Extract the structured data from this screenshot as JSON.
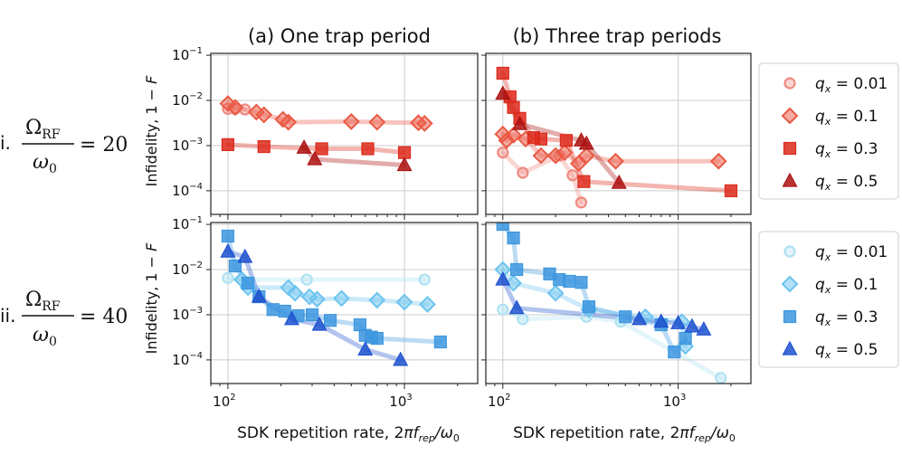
{
  "colors": {
    "red": [
      "#f08a80",
      "#ea5a45",
      "#dd2a1c",
      "#ad1212"
    ],
    "blue": [
      "#aee1f2",
      "#6cc4ef",
      "#3d97df",
      "#1f52cf"
    ],
    "grid": "#cccccc",
    "axis": "#222222"
  },
  "row_labels": [
    {
      "prefix": "i.",
      "num": "Ω",
      "num_sub": "RF",
      "den": "ω",
      "den_sub": "0",
      "eq": "= 20"
    },
    {
      "prefix": "ii.",
      "num": "Ω",
      "num_sub": "RF",
      "den": "ω",
      "den_sub": "0",
      "eq": "= 40"
    }
  ],
  "chart_data": {
    "type": "scatter",
    "col_titles": [
      "(a) One trap period",
      "(b) Three trap periods"
    ],
    "xlabel_text": "SDK repetition rate, 2",
    "xlabel_symbol": "πf",
    "xlabel_sub": "rep",
    "xlabel_tail": "/ω",
    "xlabel_tail_sub": "0",
    "ylabel_text": "Infidelity, 1 − ",
    "ylabel_italic": "F",
    "xlim": [
      80,
      2600
    ],
    "ylim": [
      3e-05,
      0.11
    ],
    "xscale": "log",
    "yscale": "log",
    "xticks": [
      {
        "value": 100,
        "base": "10",
        "exp": "2"
      },
      {
        "value": 1000,
        "base": "10",
        "exp": "3"
      }
    ],
    "yticks": [
      {
        "value": 0.1,
        "base": "10",
        "exp": "−1"
      },
      {
        "value": 0.01,
        "base": "10",
        "exp": "−2"
      },
      {
        "value": 0.001,
        "base": "10",
        "exp": "−3"
      },
      {
        "value": 0.0001,
        "base": "10",
        "exp": "−4"
      }
    ],
    "legends": [
      {
        "row": 0,
        "palette": "red",
        "entries": [
          {
            "marker": "circle",
            "label": "0.01"
          },
          {
            "marker": "diamond",
            "label": "0.1"
          },
          {
            "marker": "square",
            "label": "0.3"
          },
          {
            "marker": "triangle",
            "label": "0.5"
          }
        ]
      },
      {
        "row": 1,
        "palette": "blue",
        "entries": [
          {
            "marker": "circle",
            "label": "0.01"
          },
          {
            "marker": "diamond",
            "label": "0.1"
          },
          {
            "marker": "square",
            "label": "0.3"
          },
          {
            "marker": "triangle",
            "label": "0.5"
          }
        ]
      }
    ],
    "legend_var": "q",
    "legend_var_sub": "x",
    "panels": [
      {
        "row": 0,
        "col": 0,
        "palette": "red",
        "series": [
          {
            "qx": "0.01",
            "marker": "circle",
            "x": [
              100,
              110,
              125
            ],
            "y": [
              0.0065,
              0.0065,
              0.0063
            ]
          },
          {
            "qx": "0.1",
            "marker": "diamond",
            "x": [
              100,
              110,
              145,
              160,
              205,
              220,
              500,
              700,
              1200,
              1300
            ],
            "y": [
              0.0085,
              0.007,
              0.0055,
              0.0048,
              0.0038,
              0.0033,
              0.0034,
              0.0033,
              0.0032,
              0.0031
            ]
          },
          {
            "qx": "0.3",
            "marker": "square",
            "x": [
              100,
              160,
              340,
              620,
              1000
            ],
            "y": [
              0.00105,
              0.00095,
              0.00085,
              0.00085,
              0.0007
            ]
          },
          {
            "qx": "0.5",
            "marker": "triangle",
            "x": [
              270,
              310,
              1000
            ],
            "y": [
              0.0009,
              0.0005,
              0.00037
            ]
          }
        ]
      },
      {
        "row": 0,
        "col": 1,
        "palette": "red",
        "series": [
          {
            "qx": "0.01",
            "marker": "circle",
            "x": [
              100,
              130,
              210,
              250,
              280
            ],
            "y": [
              0.0007,
              0.00025,
              0.0006,
              0.00022,
              5.5e-05
            ]
          },
          {
            "qx": "0.1",
            "marker": "diamond",
            "x": [
              100,
              105,
              115,
              135,
              165,
              200,
              225,
              270,
              300,
              440,
              1700
            ],
            "y": [
              0.0018,
              0.0013,
              0.0017,
              0.0014,
              0.0006,
              0.0006,
              0.0007,
              0.0004,
              0.0006,
              0.00045,
              0.00045
            ]
          },
          {
            "qx": "0.3",
            "marker": "square",
            "x": [
              100,
              110,
              115,
              125,
              150,
              165,
              230,
              290,
              2000
            ],
            "y": [
              0.04,
              0.012,
              0.007,
              0.004,
              0.0015,
              0.0014,
              0.0013,
              0.00016,
              0.0001
            ]
          },
          {
            "qx": "0.5",
            "marker": "triangle",
            "x": [
              100,
              125,
              280,
              300,
              460
            ],
            "y": [
              0.014,
              0.003,
              0.0013,
              0.0011,
              0.00015
            ]
          }
        ]
      },
      {
        "row": 1,
        "col": 0,
        "palette": "blue",
        "series": [
          {
            "qx": "0.01",
            "marker": "circle",
            "x": [
              100,
              120,
              280,
              1300
            ],
            "y": [
              0.0065,
              0.006,
              0.006,
              0.006
            ]
          },
          {
            "qx": "0.1",
            "marker": "diamond",
            "x": [
              120,
              130,
              220,
              240,
              290,
              320,
              440,
              700,
              1000,
              1350
            ],
            "y": [
              0.006,
              0.004,
              0.004,
              0.003,
              0.0025,
              0.0022,
              0.0023,
              0.0021,
              0.0019,
              0.0017
            ]
          },
          {
            "qx": "0.3",
            "marker": "square",
            "x": [
              100,
              110,
              130,
              150,
              180,
              210,
              250,
              300,
              380,
              560,
              600,
              650,
              700,
              1600
            ],
            "y": [
              0.055,
              0.012,
              0.005,
              0.0025,
              0.0013,
              0.0012,
              0.00095,
              0.001,
              0.00075,
              0.0006,
              0.00035,
              0.00032,
              0.0003,
              0.00025
            ]
          },
          {
            "qx": "0.5",
            "marker": "triangle",
            "x": [
              100,
              125,
              150,
              230,
              330,
              600,
              950
            ],
            "y": [
              0.025,
              0.019,
              0.0025,
              0.0008,
              0.0006,
              0.00017,
              0.0001
            ]
          }
        ]
      },
      {
        "row": 1,
        "col": 1,
        "palette": "blue",
        "series": [
          {
            "qx": "0.01",
            "marker": "circle",
            "x": [
              100,
              130,
              300,
              470,
              1750
            ],
            "y": [
              0.0013,
              0.0008,
              0.0009,
              0.0007,
              4e-05
            ]
          },
          {
            "qx": "0.1",
            "marker": "diamond",
            "x": [
              100,
              115,
              200,
              310,
              650,
              1050,
              1100
            ],
            "y": [
              0.01,
              0.005,
              0.003,
              0.0013,
              0.0009,
              0.0007,
              0.0002
            ]
          },
          {
            "qx": "0.3",
            "marker": "square",
            "x": [
              100,
              115,
              120,
              185,
              210,
              240,
              280,
              310,
              500,
              800,
              950,
              1100
            ],
            "y": [
              0.1,
              0.05,
              0.01,
              0.008,
              0.006,
              0.0055,
              0.0052,
              0.0015,
              0.0009,
              0.0006,
              0.00015,
              0.0003
            ]
          },
          {
            "qx": "0.5",
            "marker": "triangle",
            "x": [
              100,
              120,
              600,
              800,
              1000,
              1200,
              1400
            ],
            "y": [
              0.006,
              0.0014,
              0.0008,
              0.0007,
              0.00065,
              0.00055,
              0.00047
            ]
          }
        ]
      }
    ]
  }
}
